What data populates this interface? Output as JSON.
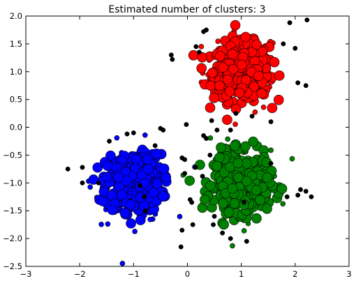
{
  "chart_data": {
    "type": "scatter",
    "title": "Estimated number of clusters: 3",
    "xlabel": "",
    "ylabel": "",
    "xlim": [
      -3,
      3
    ],
    "ylim": [
      -2.5,
      2.0
    ],
    "xticks": [
      -3,
      -2,
      -1,
      0,
      1,
      2,
      3
    ],
    "xtick_labels": [
      "−3",
      "−2",
      "−1",
      "0",
      "1",
      "2",
      "3"
    ],
    "yticks": [
      -2.5,
      -2.0,
      -1.5,
      -1.0,
      -0.5,
      0.0,
      0.5,
      1.0,
      1.5,
      2.0
    ],
    "ytick_labels": [
      "−2.5",
      "−2.0",
      "−1.5",
      "−1.0",
      "−0.5",
      "0.0",
      "0.5",
      "1.0",
      "1.5",
      "2.0"
    ],
    "grid": false,
    "colors": {
      "cluster_0": "#00ff00",
      "cluster_0_fill": "#008000",
      "cluster_1": "#0000ff",
      "cluster_2": "#ff0000",
      "noise": "#000000"
    },
    "series": [
      {
        "color": "#ff0000",
        "center": [
          1.0,
          1.0
        ],
        "core_count": 420,
        "edge_count": 60,
        "spread": 0.3
      },
      {
        "color": "#0000ff",
        "center": [
          -1.0,
          -1.0
        ],
        "core_count": 420,
        "edge_count": 60,
        "spread": 0.3
      },
      {
        "color": "#008000",
        "center": [
          1.0,
          -1.0
        ],
        "core_count": 420,
        "edge_count": 60,
        "spread": 0.3
      },
      {
        "color": "#000000",
        "points": [
          [
            -0.8,
            -1.25
          ],
          [
            -0.78,
            -1.5
          ],
          [
            -0.88,
            -1.05
          ],
          [
            -1.12,
            -0.12
          ],
          [
            -1.0,
            -0.1
          ],
          [
            -1.45,
            -0.25
          ],
          [
            -1.65,
            -1.0
          ],
          [
            -1.95,
            -1.0
          ],
          [
            -2.22,
            -0.75
          ],
          [
            -1.95,
            -0.72
          ],
          [
            -0.6,
            -0.33
          ],
          [
            -0.45,
            -0.05
          ],
          [
            -0.5,
            -0.02
          ],
          [
            -0.3,
            1.3
          ],
          [
            -0.28,
            1.22
          ],
          [
            -0.1,
            -0.55
          ],
          [
            -0.05,
            -0.83
          ],
          [
            0.05,
            -1.3
          ],
          [
            0.08,
            -1.35
          ],
          [
            0.1,
            -1.75
          ],
          [
            -0.1,
            -1.85
          ],
          [
            -0.12,
            -2.15
          ],
          [
            -0.05,
            -0.58
          ],
          [
            -0.02,
            0.05
          ],
          [
            0.3,
            1.72
          ],
          [
            0.22,
            1.35
          ],
          [
            0.35,
            1.75
          ],
          [
            0.16,
            1.45
          ],
          [
            0.3,
            -0.15
          ],
          [
            0.35,
            -0.2
          ],
          [
            0.42,
            -0.5
          ],
          [
            0.15,
            -0.72
          ],
          [
            0.28,
            -0.88
          ],
          [
            0.45,
            0.12
          ],
          [
            0.55,
            -0.05
          ],
          [
            0.5,
            -1.6
          ],
          [
            0.48,
            -1.75
          ],
          [
            0.65,
            -1.9
          ],
          [
            0.8,
            -2.0
          ],
          [
            1.1,
            -2.05
          ],
          [
            1.05,
            -1.35
          ],
          [
            1.78,
            1.5
          ],
          [
            1.9,
            1.88
          ],
          [
            2.0,
            1.42
          ],
          [
            2.22,
            1.93
          ],
          [
            2.2,
            0.75
          ],
          [
            2.05,
            0.8
          ],
          [
            2.1,
            -1.12
          ],
          [
            2.2,
            -1.15
          ],
          [
            2.05,
            -1.22
          ],
          [
            1.85,
            -1.25
          ],
          [
            2.3,
            -1.25
          ],
          [
            1.55,
            -0.65
          ],
          [
            1.55,
            0.1
          ],
          [
            1.2,
            0.2
          ],
          [
            0.8,
            -0.05
          ],
          [
            0.9,
            0.25
          ]
        ]
      }
    ]
  }
}
